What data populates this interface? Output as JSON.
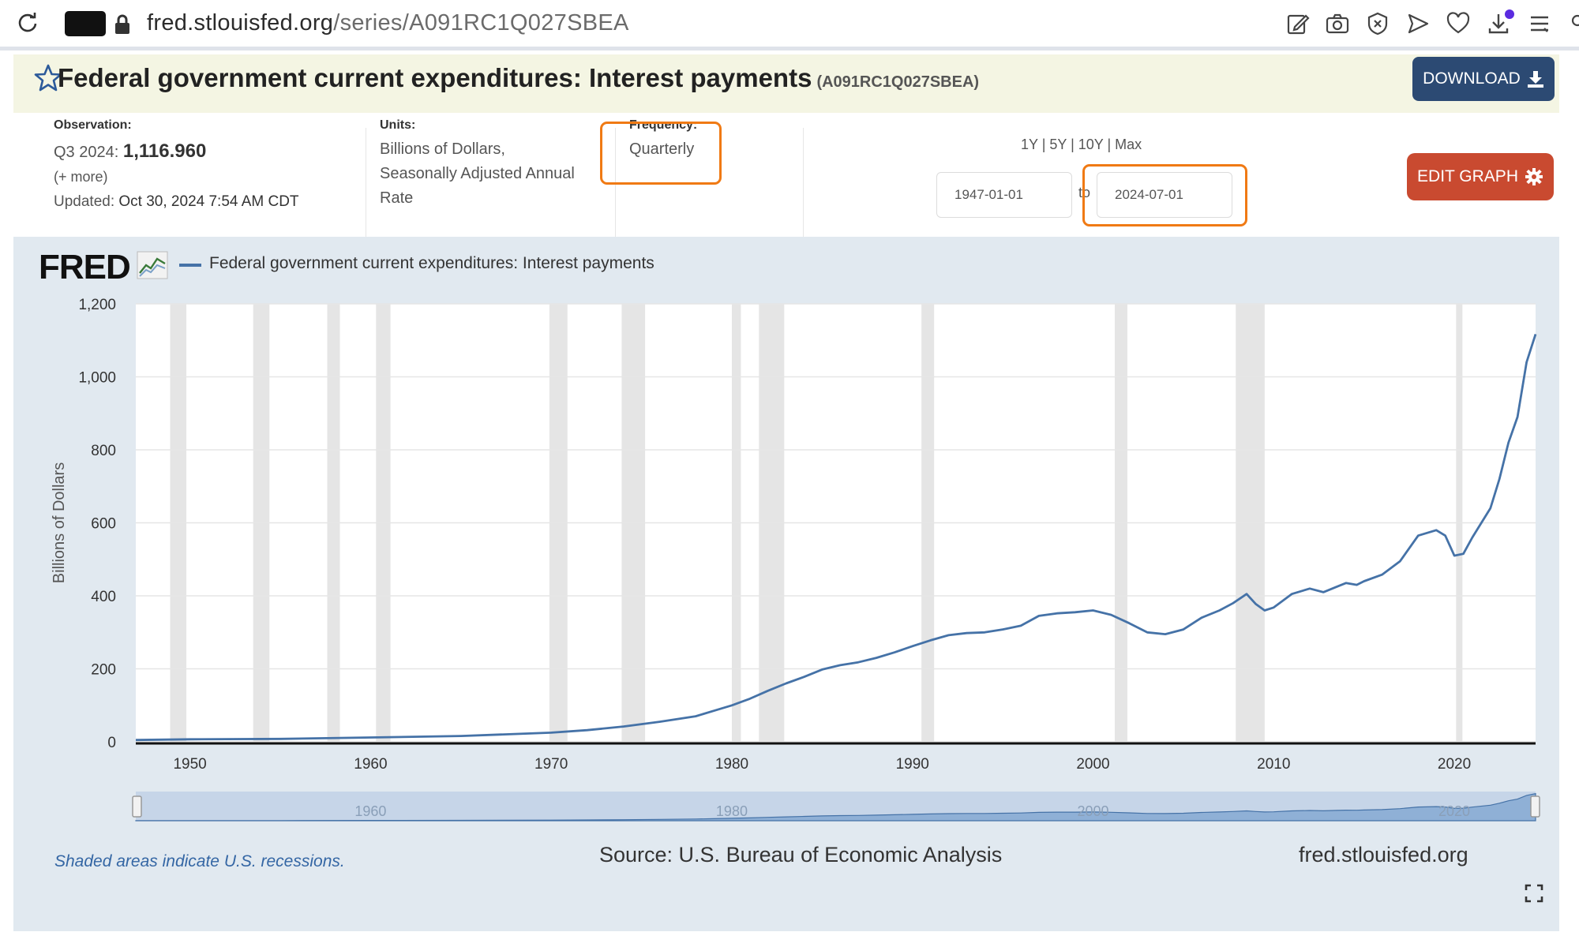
{
  "browser": {
    "url_domain": "fred.stlouisfed.org",
    "url_path": "/series/A091RC1Q027SBEA"
  },
  "header": {
    "title": "Federal government current expenditures: Interest payments",
    "series_id": "(A091RC1Q027SBEA)",
    "download_label": "DOWNLOAD"
  },
  "meta": {
    "observation_label": "Observation:",
    "observation_period": "Q3 2024:",
    "observation_value": "1,116.960",
    "more_link": "(+ more)",
    "updated_label": "Updated:",
    "updated_value": "Oct 30, 2024 7:54 AM CDT",
    "units_label": "Units:",
    "units_line1": "Billions of Dollars,",
    "units_line2": "Seasonally Adjusted Annual",
    "units_line3": "Rate",
    "frequency_label": "Frequency:",
    "frequency_value": "Quarterly"
  },
  "range": {
    "links": [
      "1Y",
      "5Y",
      "10Y",
      "Max"
    ],
    "start_date": "1947-01-01",
    "to_label": "to",
    "end_date": "2024-07-01"
  },
  "edit_graph_label": "EDIT GRAPH",
  "chart": {
    "logo_text": "FRED",
    "recession_note": "Shaded areas indicate U.S. recessions.",
    "source": "Source: U.S. Bureau of Economic Analysis",
    "site": "fred.stlouisfed.org",
    "line_color": "#4572a7",
    "recession_color": "#e5e5e5",
    "navigator_labels": [
      "1960",
      "1980",
      "2000",
      "2020"
    ]
  },
  "chart_data": {
    "type": "line",
    "title": "",
    "xlabel": "",
    "ylabel": "Billions of Dollars",
    "xlim": [
      1947.0,
      2024.5
    ],
    "ylim": [
      0,
      1200
    ],
    "yticks": [
      0,
      200,
      400,
      600,
      800,
      1000,
      1200
    ],
    "xticks": [
      1950,
      1960,
      1970,
      1980,
      1990,
      2000,
      2010,
      2020
    ],
    "grid": true,
    "recessions": [
      [
        1948.9,
        1949.8
      ],
      [
        1953.5,
        1954.4
      ],
      [
        1957.6,
        1958.3
      ],
      [
        1960.3,
        1961.1
      ],
      [
        1969.9,
        1970.9
      ],
      [
        1973.9,
        1975.2
      ],
      [
        1980.0,
        1980.5
      ],
      [
        1981.5,
        1982.9
      ],
      [
        1990.5,
        1991.2
      ],
      [
        2001.2,
        2001.9
      ],
      [
        2007.9,
        2009.5
      ],
      [
        2020.1,
        2020.4
      ]
    ],
    "series": [
      {
        "name": "Federal government current expenditures: Interest payments",
        "x": [
          1947.0,
          1950,
          1955,
          1960,
          1965,
          1970,
          1972,
          1974,
          1976,
          1978,
          1979,
          1980,
          1981,
          1982,
          1983,
          1984,
          1985,
          1986,
          1987,
          1988,
          1989,
          1990,
          1991,
          1992,
          1993,
          1994,
          1995,
          1996,
          1997,
          1998,
          1999,
          2000,
          2001,
          2002,
          2003,
          2004,
          2005,
          2006,
          2007,
          2007.75,
          2008.5,
          2009,
          2009.5,
          2010,
          2011,
          2012,
          2012.75,
          2013.5,
          2014,
          2014.6,
          2015,
          2016,
          2017,
          2018,
          2019,
          2019.5,
          2020,
          2020.5,
          2021,
          2022,
          2022.5,
          2023,
          2023.5,
          2024,
          2024.5
        ],
        "values": [
          5,
          7,
          8,
          12,
          16,
          25,
          32,
          42,
          55,
          70,
          85,
          100,
          118,
          140,
          160,
          178,
          198,
          210,
          218,
          230,
          245,
          262,
          278,
          292,
          298,
          300,
          308,
          318,
          345,
          352,
          355,
          360,
          348,
          325,
          300,
          295,
          308,
          340,
          360,
          380,
          405,
          378,
          360,
          368,
          405,
          420,
          410,
          425,
          435,
          430,
          440,
          458,
          495,
          565,
          580,
          565,
          510,
          515,
          560,
          640,
          720,
          820,
          890,
          1040,
          1117
        ]
      }
    ]
  }
}
